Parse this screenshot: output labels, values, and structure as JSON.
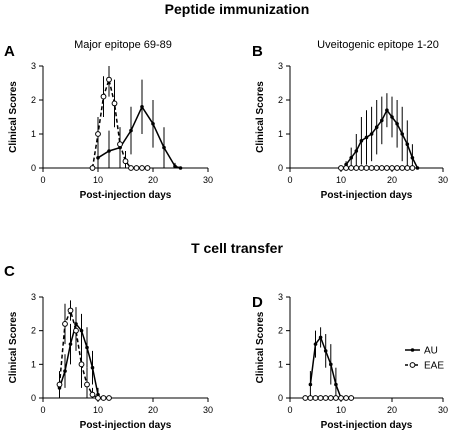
{
  "figure": {
    "section_titles": [
      "Peptide immunization",
      "T cell transfer"
    ],
    "legend": [
      {
        "label": "AU",
        "style": "solid-filled"
      },
      {
        "label": "EAE",
        "style": "dashed-open"
      }
    ]
  },
  "chart_data": [
    {
      "type": "line",
      "panel_label": "A",
      "title": "Major epitope 69-89",
      "xlabel": "Post-injection days",
      "ylabel": "Clinical Scores",
      "xlim": [
        0,
        30
      ],
      "ylim": [
        0,
        3
      ],
      "xticks": [
        0,
        10,
        20,
        30
      ],
      "yticks": [
        0,
        1,
        2,
        3
      ],
      "series": [
        {
          "name": "AU",
          "style": "solid-filled",
          "x": [
            10,
            12,
            14,
            16,
            18,
            20,
            22,
            24,
            25
          ],
          "y": [
            0.3,
            0.5,
            0.6,
            1.1,
            1.8,
            1.3,
            0.6,
            0.05,
            0
          ],
          "err": [
            0.3,
            0.6,
            0.6,
            0.7,
            0.8,
            0.7,
            0.6,
            0.1,
            0
          ]
        },
        {
          "name": "EAE",
          "style": "dashed-open",
          "x": [
            9,
            10,
            11,
            12,
            13,
            14,
            15,
            16,
            17,
            18,
            19
          ],
          "y": [
            0,
            1.0,
            2.1,
            2.6,
            1.9,
            0.7,
            0.2,
            0,
            0,
            0,
            0
          ],
          "err": [
            0,
            0.5,
            0.6,
            0.5,
            0.7,
            0.5,
            0.3,
            0,
            0,
            0,
            0
          ]
        }
      ]
    },
    {
      "type": "line",
      "panel_label": "B",
      "title": "Uveitogenic epitope 1-20",
      "xlabel": "Post-injection days",
      "ylabel": "Clinical Scores",
      "xlim": [
        0,
        30
      ],
      "ylim": [
        0,
        3
      ],
      "xticks": [
        0,
        10,
        20,
        30
      ],
      "yticks": [
        0,
        1,
        2,
        3
      ],
      "series": [
        {
          "name": "AU",
          "style": "solid-filled",
          "x": [
            11,
            12,
            13,
            14,
            15,
            16,
            17,
            18,
            19,
            20,
            21,
            22,
            23,
            24,
            25
          ],
          "y": [
            0.1,
            0.3,
            0.5,
            0.8,
            0.9,
            1.0,
            1.2,
            1.4,
            1.7,
            1.5,
            1.3,
            1.0,
            0.7,
            0.3,
            0
          ],
          "err": [
            0.1,
            0.3,
            0.5,
            0.7,
            0.8,
            0.8,
            0.8,
            0.7,
            0.5,
            0.6,
            0.7,
            0.8,
            0.7,
            0.4,
            0
          ]
        },
        {
          "name": "EAE",
          "style": "dashed-open",
          "x": [
            10,
            11,
            12,
            13,
            14,
            15,
            16,
            17,
            18,
            19,
            20,
            21,
            22,
            23,
            24
          ],
          "y": [
            0,
            0,
            0,
            0,
            0,
            0,
            0,
            0,
            0,
            0,
            0,
            0,
            0,
            0,
            0
          ],
          "err": [
            0,
            0,
            0,
            0,
            0,
            0,
            0,
            0,
            0,
            0,
            0,
            0,
            0,
            0,
            0
          ]
        }
      ]
    },
    {
      "type": "line",
      "panel_label": "C",
      "title": "",
      "xlabel": "Post-injection days",
      "ylabel": "Clinical Scores",
      "xlim": [
        0,
        30
      ],
      "ylim": [
        0,
        3
      ],
      "xticks": [
        0,
        10,
        20,
        30
      ],
      "yticks": [
        0,
        1,
        2,
        3
      ],
      "series": [
        {
          "name": "AU",
          "style": "solid-filled",
          "x": [
            3,
            4,
            5,
            6,
            7,
            8,
            9,
            10
          ],
          "y": [
            0.3,
            0.8,
            1.6,
            2.2,
            2.0,
            1.5,
            0.9,
            0.1
          ],
          "err": [
            0.3,
            0.5,
            0.6,
            0.5,
            0.5,
            0.6,
            0.5,
            0.2
          ]
        },
        {
          "name": "EAE",
          "style": "dashed-open",
          "x": [
            3,
            4,
            5,
            6,
            7,
            8,
            9,
            10,
            11,
            12
          ],
          "y": [
            0.4,
            2.2,
            2.6,
            2.0,
            1.0,
            0.4,
            0.1,
            0,
            0,
            0
          ],
          "err": [
            0.4,
            0.6,
            0.3,
            0.6,
            0.7,
            0.5,
            0.2,
            0,
            0,
            0
          ]
        }
      ]
    },
    {
      "type": "line",
      "panel_label": "D",
      "title": "",
      "xlabel": "Post-injection days",
      "ylabel": "Clinical Scores",
      "xlim": [
        0,
        30
      ],
      "ylim": [
        0,
        3
      ],
      "xticks": [
        0,
        10,
        20,
        30
      ],
      "yticks": [
        0,
        1,
        2,
        3
      ],
      "series": [
        {
          "name": "AU",
          "style": "solid-filled",
          "x": [
            4,
            5,
            6,
            7,
            8,
            9,
            10
          ],
          "y": [
            0.4,
            1.6,
            1.8,
            1.4,
            1.0,
            0.4,
            0
          ],
          "err": [
            0.4,
            0.4,
            0.3,
            0.5,
            0.6,
            0.5,
            0
          ]
        },
        {
          "name": "EAE",
          "style": "dashed-open",
          "x": [
            3,
            4,
            5,
            6,
            7,
            8,
            9,
            10,
            11,
            12
          ],
          "y": [
            0,
            0,
            0,
            0,
            0,
            0,
            0,
            0,
            0,
            0
          ],
          "err": [
            0,
            0,
            0,
            0,
            0,
            0,
            0,
            0,
            0,
            0
          ]
        }
      ]
    }
  ]
}
